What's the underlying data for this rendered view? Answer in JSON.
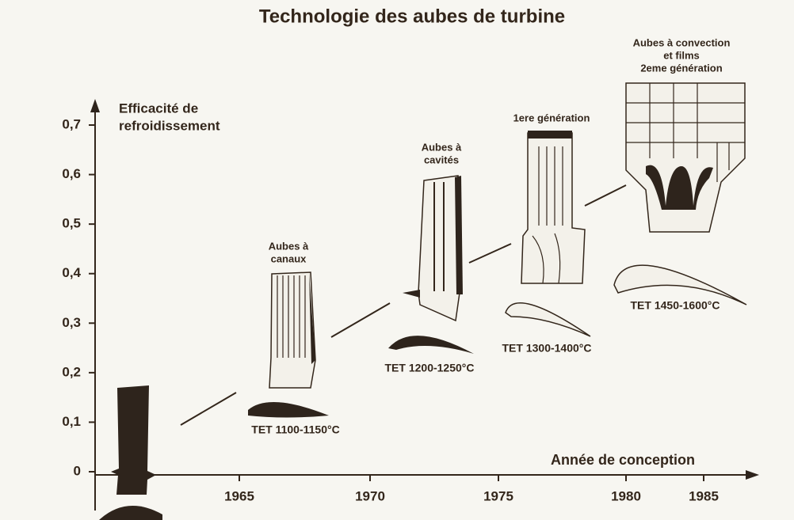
{
  "title": "Technologie des aubes de turbine",
  "y_axis": {
    "label": [
      "Efficacité de",
      "refroidissement"
    ],
    "ticks": [
      {
        "value": 0,
        "label": "0"
      },
      {
        "value": 0.1,
        "label": "0,1"
      },
      {
        "value": 0.2,
        "label": "0,2"
      },
      {
        "value": 0.3,
        "label": "0,3"
      },
      {
        "value": 0.4,
        "label": "0,4"
      },
      {
        "value": 0.5,
        "label": "0,5"
      },
      {
        "value": 0.6,
        "label": "0,6"
      },
      {
        "value": 0.7,
        "label": "0,7"
      }
    ]
  },
  "x_axis": {
    "label": "Année de conception",
    "ticks": [
      1965,
      1970,
      1975,
      1980,
      1985
    ]
  },
  "blades": [
    {
      "name": [
        "Aubes à",
        "canaux"
      ],
      "tet": "TET 1100-1150°C"
    },
    {
      "name": [
        "Aubes à",
        "cavités"
      ],
      "tet": "TET 1200-1250°C"
    },
    {
      "name": [
        "1ere génération"
      ],
      "tet": "TET 1300-1400°C"
    },
    {
      "name": [
        "Aubes à convection",
        "et films",
        "2eme génération"
      ],
      "tet": "TET 1450-1600°C"
    }
  ]
}
